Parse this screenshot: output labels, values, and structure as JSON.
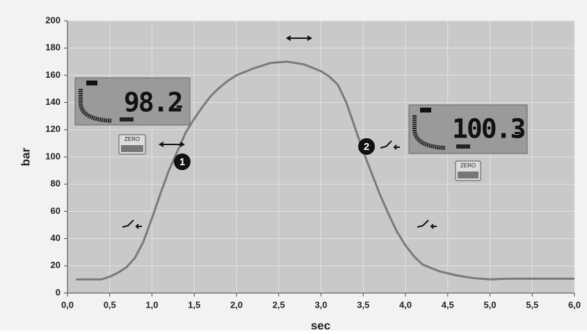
{
  "chart_data": {
    "type": "line",
    "x": [
      0.1,
      0.4,
      0.5,
      0.6,
      0.7,
      0.8,
      0.9,
      1.0,
      1.1,
      1.2,
      1.3,
      1.4,
      1.5,
      1.6,
      1.7,
      1.8,
      1.9,
      2.0,
      2.2,
      2.4,
      2.6,
      2.8,
      3.0,
      3.1,
      3.2,
      3.3,
      3.4,
      3.5,
      3.6,
      3.7,
      3.8,
      3.9,
      4.0,
      4.1,
      4.2,
      4.4,
      4.6,
      4.8,
      5.0,
      5.2,
      6.0
    ],
    "values": [
      10,
      10,
      12,
      15,
      19,
      26,
      38,
      55,
      73,
      90,
      104,
      118,
      128,
      137,
      145,
      151,
      156,
      160,
      165,
      169,
      170,
      168,
      163,
      159,
      153,
      140,
      122,
      104,
      88,
      72,
      58,
      45,
      35,
      27,
      21,
      16,
      13,
      11,
      10,
      10.5,
      10.5
    ],
    "color": "#7a7a7a",
    "x_label": "sec",
    "y_label": "bar",
    "xlim": [
      0,
      6
    ],
    "ylim": [
      0,
      200
    ],
    "xticks": [
      {
        "value": 0,
        "label": "0,0"
      },
      {
        "value": 0.5,
        "label": "0,5"
      },
      {
        "value": 1,
        "label": "1,0"
      },
      {
        "value": 1.5,
        "label": "1,5"
      },
      {
        "value": 2,
        "label": "2,0"
      },
      {
        "value": 2.5,
        "label": "2,5"
      },
      {
        "value": 3,
        "label": "3,0"
      },
      {
        "value": 3.5,
        "label": "3,5"
      },
      {
        "value": 4,
        "label": "4,0"
      },
      {
        "value": 4.5,
        "label": "4,5"
      },
      {
        "value": 5,
        "label": "5,0"
      },
      {
        "value": 5.5,
        "label": "5,5"
      },
      {
        "value": 6,
        "label": "6,0"
      }
    ],
    "yticks": [
      0,
      20,
      40,
      60,
      80,
      100,
      120,
      140,
      160,
      180,
      200
    ],
    "grid": true,
    "annotations": [
      "1",
      "2",
      "98.2",
      "100.3",
      "ZERO",
      "ZERO"
    ]
  }
}
